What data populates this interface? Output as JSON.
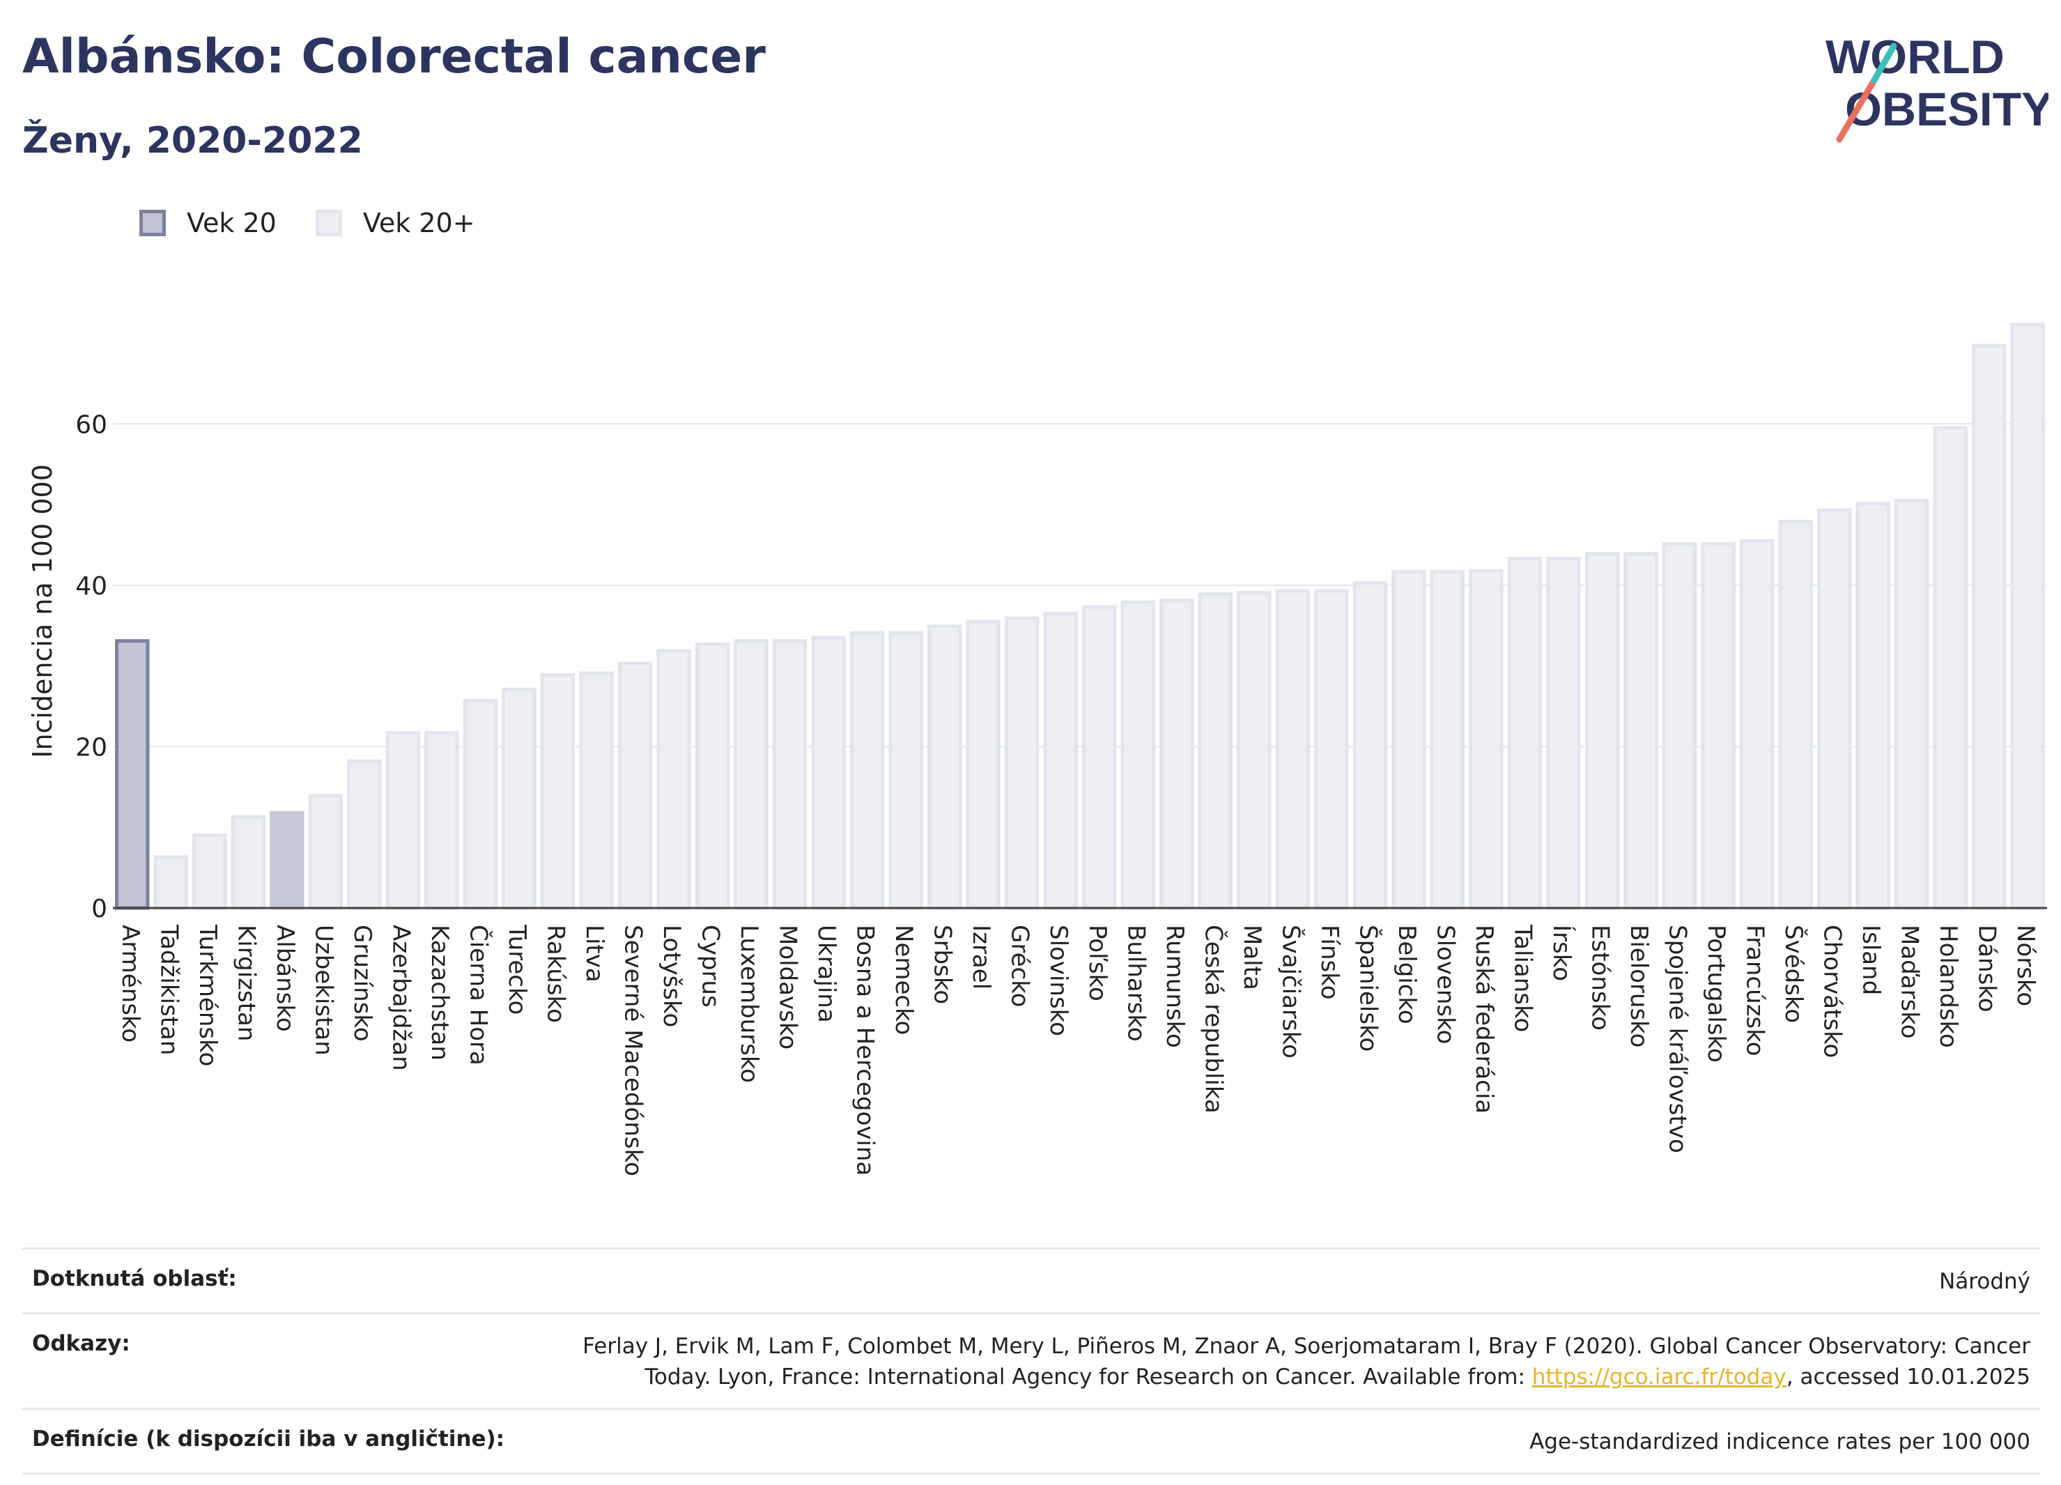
{
  "header": {
    "title": "Albánsko: Colorectal cancer",
    "subtitle": "Ženy, 2020-2022"
  },
  "logo": {
    "line1": "WORLD",
    "line2": "OBESITY"
  },
  "legend": [
    {
      "label": "Vek 20",
      "color": "#c1c4d3"
    },
    {
      "label": "Vek 20+",
      "color": "#eeeff4"
    }
  ],
  "colors": {
    "highlight": "#c1c4d3",
    "highlight_stroke": "#7c819c",
    "bar": "#eeeff4",
    "bar_stroke": "#e3e5ed",
    "albania": "#c7c9d6"
  },
  "chart_data": {
    "type": "bar",
    "ylabel": "Incidencia na 100 000",
    "yticks": [
      0,
      20,
      40,
      60
    ],
    "ylim": [
      0,
      76
    ],
    "grid": true,
    "categories": [
      "Arménsko",
      "Tadžikistan",
      "Turkménsko",
      "Kirgizstan",
      "Albánsko",
      "Uzbekistan",
      "Gruzínsko",
      "Azerbajdžan",
      "Kazachstan",
      "Čierna Hora",
      "Turecko",
      "Rakúsko",
      "Litva",
      "Severné Macedónsko",
      "Lotyšsko",
      "Cyprus",
      "Luxembursko",
      "Moldavsko",
      "Ukrajina",
      "Bosna a Hercegovina",
      "Nemecko",
      "Srbsko",
      "Izrael",
      "Grécko",
      "Slovinsko",
      "Poľsko",
      "Bulharsko",
      "Rumunsko",
      "Česká republika",
      "Malta",
      "Švajčiarsko",
      "Fínsko",
      "Španielsko",
      "Belgicko",
      "Slovensko",
      "Ruská federácia",
      "Taliansko",
      "Írsko",
      "Estónsko",
      "Bielorusko",
      "Spojené kráľovstvo",
      "Portugalsko",
      "Francúzsko",
      "Švédsko",
      "Chorvátsko",
      "Island",
      "Maďarsko",
      "Holandsko",
      "Dánsko",
      "Nórsko"
    ],
    "values": [
      33.1,
      6.3,
      9.0,
      11.3,
      11.8,
      13.9,
      18.2,
      21.7,
      21.7,
      25.7,
      27.1,
      28.9,
      29.1,
      30.3,
      31.9,
      32.7,
      33.1,
      33.1,
      33.5,
      34.1,
      34.1,
      34.9,
      35.5,
      35.9,
      36.5,
      37.3,
      37.9,
      38.1,
      38.9,
      39.1,
      39.3,
      39.3,
      40.3,
      41.7,
      41.7,
      41.8,
      43.3,
      43.3,
      43.9,
      43.9,
      45.1,
      45.1,
      45.5,
      47.9,
      49.3,
      50.1,
      50.5,
      59.5,
      69.7,
      72.3
    ],
    "series_group": [
      "Vek 20",
      "Vek 20+",
      "Vek 20+",
      "Vek 20+",
      "Vek 20+",
      "Vek 20+",
      "Vek 20+",
      "Vek 20+",
      "Vek 20+",
      "Vek 20+",
      "Vek 20+",
      "Vek 20+",
      "Vek 20+",
      "Vek 20+",
      "Vek 20+",
      "Vek 20+",
      "Vek 20+",
      "Vek 20+",
      "Vek 20+",
      "Vek 20+",
      "Vek 20+",
      "Vek 20+",
      "Vek 20+",
      "Vek 20+",
      "Vek 20+",
      "Vek 20+",
      "Vek 20+",
      "Vek 20+",
      "Vek 20+",
      "Vek 20+",
      "Vek 20+",
      "Vek 20+",
      "Vek 20+",
      "Vek 20+",
      "Vek 20+",
      "Vek 20+",
      "Vek 20+",
      "Vek 20+",
      "Vek 20+",
      "Vek 20+",
      "Vek 20+",
      "Vek 20+",
      "Vek 20+",
      "Vek 20+",
      "Vek 20+",
      "Vek 20+",
      "Vek 20+",
      "Vek 20+",
      "Vek 20+",
      "Vek 20+"
    ],
    "highlight": "Albánsko"
  },
  "footer": {
    "area_label": "Dotknutá oblasť:",
    "area_value": "Národný",
    "refs_label": "Odkazy:",
    "refs_text1": "Ferlay J, Ervik M, Lam F, Colombet M, Mery L, Piñeros M, Znaor A, Soerjomataram I, Bray F (2020). Global Cancer Observatory: Cancer Today. Lyon, France: International Agency for Research on Cancer. Available from: ",
    "refs_link": "https://gco.iarc.fr/today",
    "refs_text2": ", accessed 10.01.2025",
    "def_label": "Definície (k dispozícii iba v angličtine):",
    "def_value": "Age-standardized indicence rates per 100 000"
  }
}
